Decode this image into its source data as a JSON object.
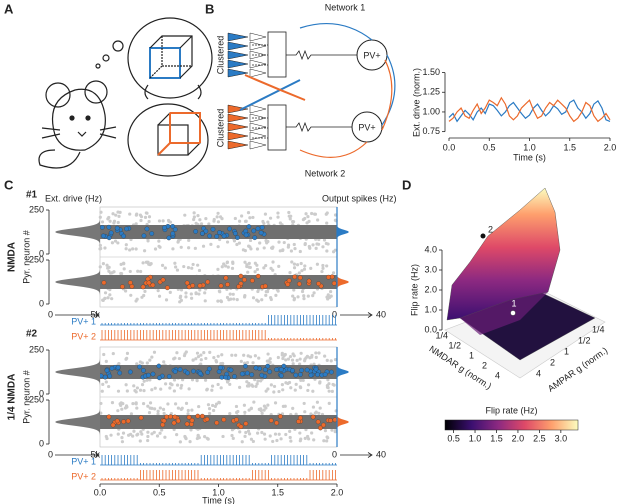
{
  "figure": {
    "panel_labels": [
      "A",
      "B",
      "C",
      "D"
    ],
    "panel_b": {
      "network_1": "Network 1",
      "network_2": "Network 2",
      "clustered": "Clustered",
      "pv": "PV+"
    },
    "panel_c": {
      "blocks": [
        "#1",
        "#2"
      ],
      "ext_drive": "Ext. drive (Hz)",
      "output_spikes": "Output spikes (Hz)",
      "row_labels": [
        "NMDA",
        "1/4 NMDA"
      ],
      "ylabel": "Pyr. neuron #",
      "yticks": [
        250,
        0
      ],
      "ext_ticks": [
        0,
        {
          "value": 5000,
          "label": "5k"
        }
      ],
      "out_ticks": [
        0,
        40
      ],
      "pv_labels": [
        "PV+ 1",
        "PV+ 2"
      ],
      "xlim": [
        0,
        2
      ],
      "xticks": [
        {
          "value": 0,
          "label": "0.0"
        },
        {
          "value": 0.5,
          "label": "0.5"
        },
        {
          "value": 1,
          "label": "1.0"
        },
        {
          "value": 1.5,
          "label": "1.5"
        },
        {
          "value": 2,
          "label": "2.0"
        }
      ],
      "xlabel": "Time (s)"
    },
    "panel_d": {
      "zlabel": "Flip rate (Hz)",
      "zticks": [
        {
          "value": 0,
          "label": "0.0"
        },
        {
          "value": 1,
          "label": "1.0"
        },
        {
          "value": 2,
          "label": "2.0"
        },
        {
          "value": 3,
          "label": "3.0"
        },
        {
          "value": 4,
          "label": "4.0"
        }
      ],
      "nmdar_label": "NMDAR g (norm.)",
      "ampar_label": "AMPAR g (norm.)",
      "g_ticks": [
        "1/4",
        "1/2",
        "1",
        "2",
        "4"
      ],
      "points": [
        "1",
        "2"
      ],
      "colorbar": {
        "title": "Flip rate (Hz)",
        "clim": [
          0.3,
          3.4
        ],
        "ticks": [
          0.5,
          {
            "value": 1,
            "label": "1.0"
          },
          1.5,
          {
            "value": 2,
            "label": "2.0"
          },
          2.5,
          {
            "value": 3,
            "label": "3.0"
          }
        ]
      }
    }
  },
  "chart_data": {
    "type": "line",
    "xlabel": "Time (s)",
    "ylabel": "Ext. drive (norm.)",
    "x": [
      0,
      0.05,
      0.1,
      0.15,
      0.2,
      0.25,
      0.3,
      0.35,
      0.4,
      0.45,
      0.5,
      0.55,
      0.6,
      0.65,
      0.7,
      0.75,
      0.8,
      0.85,
      0.9,
      0.95,
      1,
      1.05,
      1.1,
      1.15,
      1.2,
      1.25,
      1.3,
      1.35,
      1.4,
      1.45,
      1.5,
      1.55,
      1.6,
      1.65,
      1.7,
      1.75,
      1.8,
      1.85,
      1.9,
      1.95,
      2
    ],
    "series": [
      {
        "color": "#2b7bc4",
        "values": [
          0.93,
          0.98,
          0.88,
          0.95,
          1.02,
          0.97,
          0.9,
          1.0,
          1.05,
          0.98,
          1.1,
          1.08,
          1.02,
          0.95,
          1.0,
          1.08,
          1.12,
          1.05,
          0.98,
          0.92,
          0.96,
          1.05,
          1.1,
          1.02,
          0.95,
          1.0,
          1.08,
          1.04,
          0.97,
          1.0,
          1.12,
          1.15,
          1.05,
          1.0,
          0.92,
          0.98,
          1.1,
          1.14,
          1.05,
          0.9,
          0.88
        ]
      },
      {
        "color": "#ec6a2c",
        "values": [
          0.88,
          0.92,
          1.0,
          1.05,
          0.95,
          0.92,
          1.02,
          1.1,
          0.98,
          1.05,
          1.15,
          1.12,
          1.08,
          1.18,
          1.1,
          0.95,
          0.9,
          0.95,
          1.05,
          1.1,
          1.15,
          1.02,
          0.92,
          0.95,
          1.05,
          1.12,
          1.08,
          1.15,
          1.1,
          1.05,
          0.95,
          0.88,
          0.92,
          1.0,
          1.12,
          1.08,
          0.95,
          0.88,
          0.92,
          0.98,
          0.9
        ]
      }
    ],
    "xlim": [
      0,
      2
    ],
    "ylim": [
      0.72,
      1.52
    ],
    "xticks": [
      {
        "value": 0,
        "label": "0.0"
      },
      {
        "value": 0.5,
        "label": "0.5"
      },
      {
        "value": 1,
        "label": "1.0"
      },
      {
        "value": 1.5,
        "label": "1.5"
      },
      {
        "value": 2,
        "label": "2.0"
      }
    ],
    "yticks": [
      {
        "value": 0.75,
        "label": "0.75"
      },
      {
        "value": 1,
        "label": "1.00"
      },
      {
        "value": 1.25,
        "label": "1.25"
      },
      {
        "value": 1.5,
        "label": "1.50"
      }
    ]
  }
}
